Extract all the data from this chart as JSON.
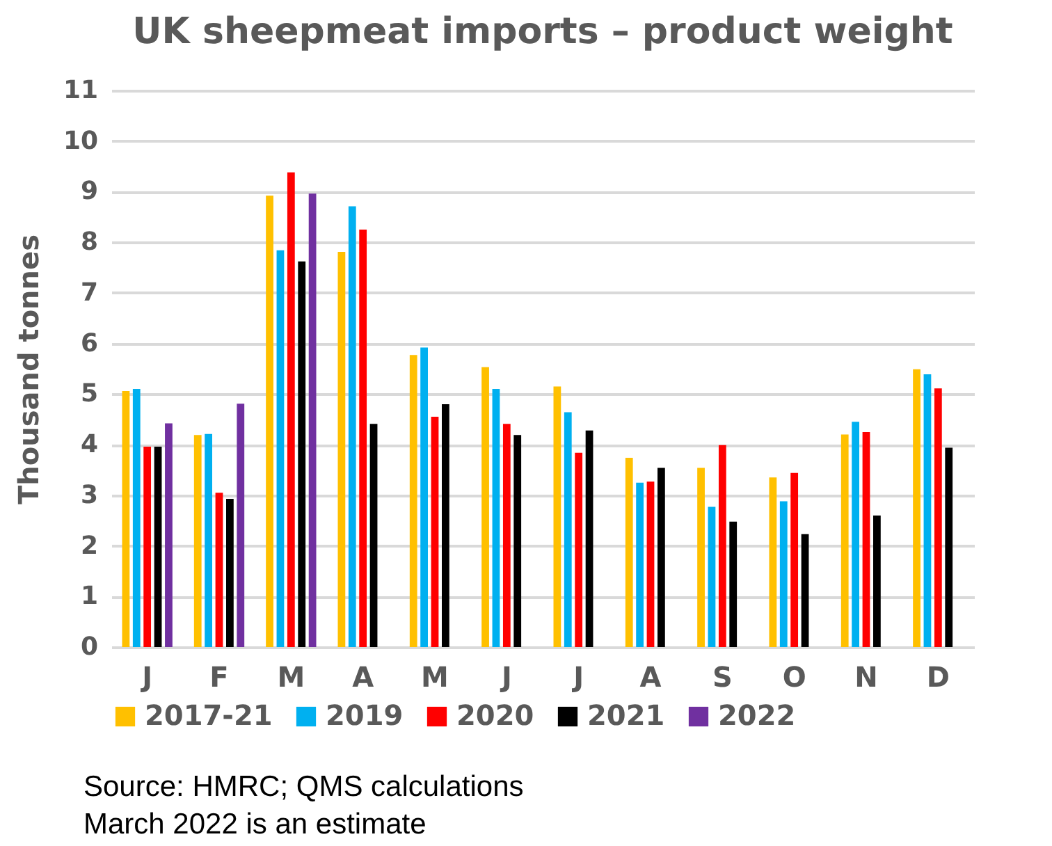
{
  "chart_data": {
    "type": "bar",
    "title": "UK sheepmeat imports – product weight",
    "ylabel": "Thousand tonnes",
    "categories": [
      "J",
      "F",
      "M",
      "A",
      "M",
      "J",
      "J",
      "A",
      "S",
      "O",
      "N",
      "D"
    ],
    "series": [
      {
        "name": "2017-21",
        "color": "#ffc000",
        "values": [
          5.06,
          4.19,
          8.92,
          7.81,
          5.77,
          5.53,
          5.15,
          3.74,
          3.54,
          3.35,
          4.2,
          5.49
        ]
      },
      {
        "name": "2019",
        "color": "#00b0f0",
        "values": [
          5.1,
          4.21,
          7.84,
          8.71,
          5.92,
          5.1,
          4.64,
          3.25,
          2.77,
          2.88,
          4.45,
          5.39
        ]
      },
      {
        "name": "2020",
        "color": "#ff0000",
        "values": [
          3.96,
          3.05,
          9.38,
          8.25,
          4.55,
          4.41,
          3.84,
          3.27,
          3.99,
          3.44,
          4.25,
          5.11
        ]
      },
      {
        "name": "2021",
        "color": "#000000",
        "values": [
          3.96,
          2.93,
          7.62,
          4.41,
          4.8,
          4.19,
          4.28,
          3.54,
          2.48,
          2.23,
          2.6,
          3.94
        ]
      },
      {
        "name": "2022",
        "color": "#7030a0",
        "values": [
          4.42,
          4.81,
          8.96,
          null,
          null,
          null,
          null,
          null,
          null,
          null,
          null,
          null
        ]
      }
    ],
    "ylim": [
      0,
      11
    ],
    "yticks": [
      0,
      1,
      2,
      3,
      4,
      5,
      6,
      7,
      8,
      9,
      10,
      11
    ],
    "grid": "y",
    "legend": "bottom",
    "annotations": [
      "Source: HMRC; QMS calculations",
      "March 2022 is an estimate"
    ]
  }
}
